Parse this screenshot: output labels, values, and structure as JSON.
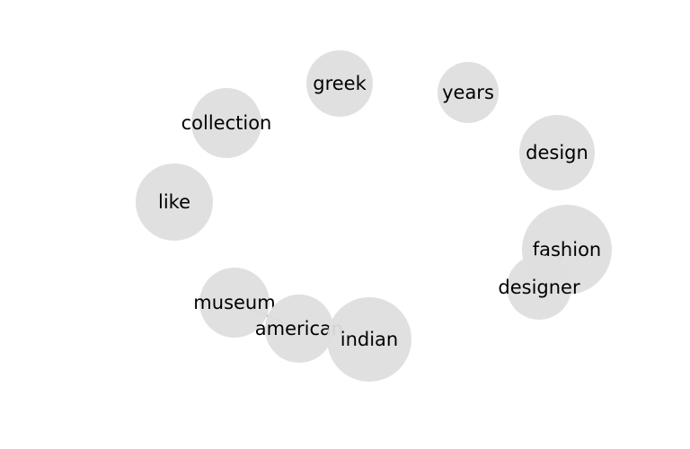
{
  "graph": {
    "nodes": [
      {
        "id": "greek",
        "label": "greek"
      },
      {
        "id": "years",
        "label": "years"
      },
      {
        "id": "collection",
        "label": "collection"
      },
      {
        "id": "design",
        "label": "design"
      },
      {
        "id": "like",
        "label": "like"
      },
      {
        "id": "fashion",
        "label": "fashion"
      },
      {
        "id": "designer",
        "label": "designer"
      },
      {
        "id": "museum",
        "label": "museum"
      },
      {
        "id": "american",
        "label": "american"
      },
      {
        "id": "indian",
        "label": "indian"
      }
    ],
    "edges": [
      {
        "source": "museum",
        "target": "american"
      },
      {
        "source": "fashion",
        "target": "designer"
      }
    ],
    "colors": {
      "node_fill": "#dedede",
      "edge": "#9a9a9a",
      "label": "#000000"
    }
  }
}
